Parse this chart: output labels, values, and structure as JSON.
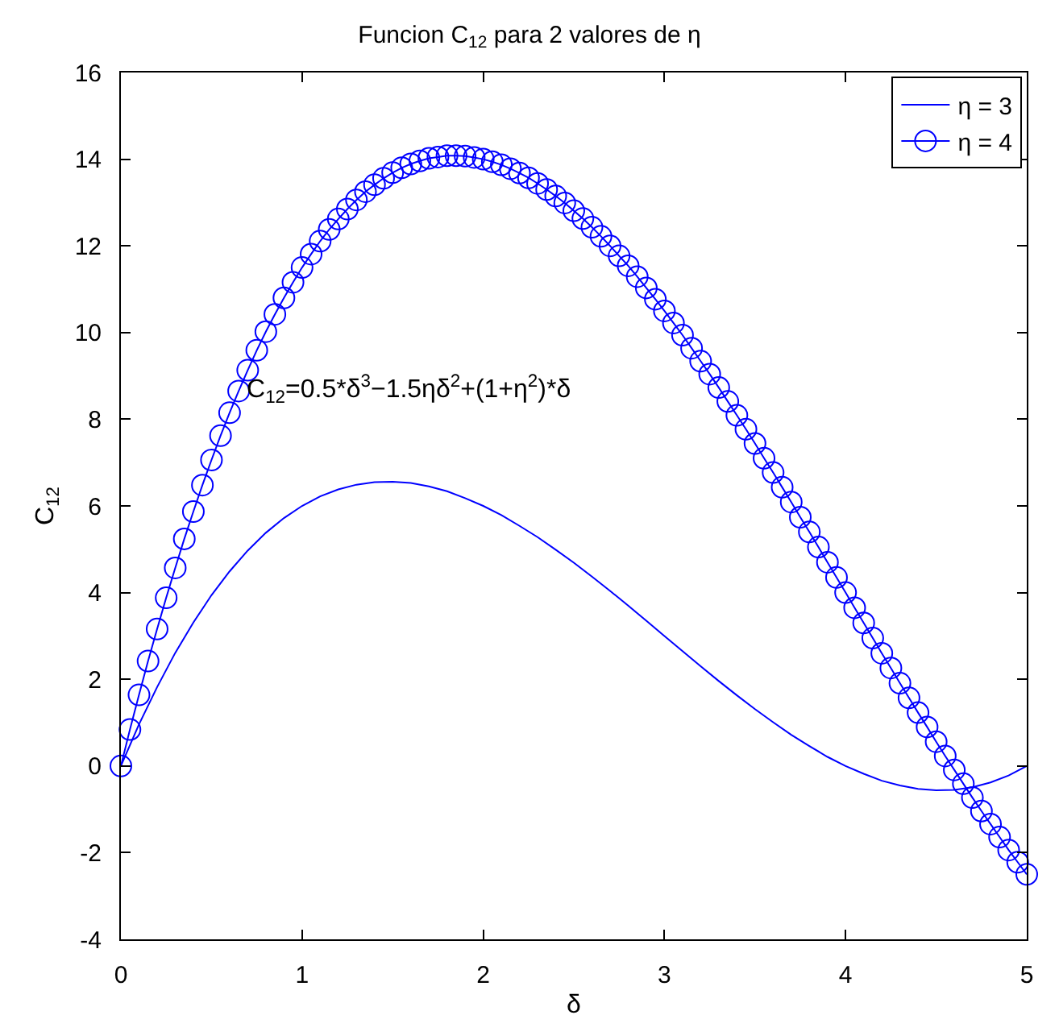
{
  "chart_data": {
    "type": "line",
    "title": "Funcion C$_{12}$ para 2 valores de η",
    "xlabel": "δ",
    "ylabel": "C$_{12}$",
    "annotations": [
      "C$_{12}$=0.5*δ$^{3}$−1.5ηδ$^{2}$+(1+η$^{2}$)*δ"
    ],
    "xlim": [
      0,
      5
    ],
    "xticks": [
      0,
      1,
      2,
      3,
      4,
      5
    ],
    "ylim": [
      -4,
      16
    ],
    "yticks": [
      -4,
      -2,
      0,
      2,
      4,
      6,
      8,
      10,
      12,
      14,
      16
    ],
    "legend": "top right",
    "line_style": "solid",
    "series": [
      {
        "name": "η = 3",
        "color": "#0000ff",
        "marker": "none",
        "x": [
          0,
          0.1,
          0.2,
          0.3,
          0.4,
          0.5,
          0.6,
          0.7,
          0.8,
          0.9,
          1.0,
          1.1,
          1.2,
          1.3,
          1.4,
          1.5,
          1.6,
          1.7,
          1.8,
          1.9,
          2.0,
          2.1,
          2.2,
          2.3,
          2.4,
          2.5,
          2.6,
          2.7,
          2.8,
          2.9,
          3.0,
          3.1,
          3.2,
          3.3,
          3.4,
          3.5,
          3.6,
          3.7,
          3.8,
          3.9,
          4.0,
          4.1,
          4.2,
          4.3,
          4.4,
          4.5,
          4.6,
          4.7,
          4.8,
          4.9,
          5.0
        ],
        "values": [
          0,
          0.96,
          1.82,
          2.61,
          3.31,
          3.94,
          4.49,
          4.97,
          5.38,
          5.72,
          6,
          6.22,
          6.38,
          6.49,
          6.55,
          6.56,
          6.53,
          6.45,
          6.34,
          6.18,
          6,
          5.79,
          5.54,
          5.28,
          4.99,
          4.69,
          4.37,
          4.04,
          3.7,
          3.35,
          3,
          2.65,
          2.3,
          1.96,
          1.63,
          1.31,
          1.01,
          0.72,
          0.46,
          0.21,
          0,
          -0.18,
          -0.34,
          -0.45,
          -0.53,
          -0.56,
          -0.55,
          -0.49,
          -0.38,
          -0.22,
          0
        ]
      },
      {
        "name": "η = 4",
        "color": "#0000ff",
        "marker": "circle",
        "x": [
          0,
          0.05,
          0.1,
          0.15,
          0.2,
          0.25,
          0.3,
          0.35,
          0.4,
          0.45,
          0.5,
          0.55,
          0.6,
          0.65,
          0.7,
          0.75,
          0.8,
          0.85,
          0.9,
          0.95,
          1.0,
          1.05,
          1.1,
          1.15,
          1.2,
          1.25,
          1.3,
          1.35,
          1.4,
          1.45,
          1.5,
          1.55,
          1.6,
          1.65,
          1.7,
          1.75,
          1.8,
          1.85,
          1.9,
          1.95,
          2.0,
          2.05,
          2.1,
          2.15,
          2.2,
          2.25,
          2.3,
          2.35,
          2.4,
          2.45,
          2.5,
          2.55,
          2.6,
          2.65,
          2.7,
          2.75,
          2.8,
          2.85,
          2.9,
          2.95,
          3.0,
          3.05,
          3.1,
          3.15,
          3.2,
          3.25,
          3.3,
          3.35,
          3.4,
          3.45,
          3.5,
          3.55,
          3.6,
          3.65,
          3.7,
          3.75,
          3.8,
          3.85,
          3.9,
          3.95,
          4.0,
          4.05,
          4.1,
          4.15,
          4.2,
          4.25,
          4.3,
          4.35,
          4.4,
          4.45,
          4.5,
          4.55,
          4.6,
          4.65,
          4.7,
          4.75,
          4.8,
          4.85,
          4.9,
          4.95,
          5.0
        ],
        "values": [
          0,
          0.84,
          1.64,
          2.42,
          3.16,
          3.88,
          4.57,
          5.24,
          5.87,
          6.48,
          7.06,
          7.62,
          8.15,
          8.65,
          9.13,
          9.59,
          10.02,
          10.42,
          10.8,
          11.16,
          11.5,
          11.81,
          12.11,
          12.38,
          12.62,
          12.85,
          13.06,
          13.25,
          13.41,
          13.56,
          13.69,
          13.8,
          13.89,
          13.96,
          14.02,
          14.05,
          14.08,
          14.08,
          14.07,
          14.04,
          14,
          13.94,
          13.87,
          13.78,
          13.68,
          13.57,
          13.44,
          13.3,
          13.15,
          12.99,
          12.81,
          12.63,
          12.43,
          12.22,
          12.0,
          11.77,
          11.54,
          11.29,
          11.03,
          10.77,
          10.5,
          10.22,
          9.94,
          9.64,
          9.34,
          9.04,
          8.73,
          8.41,
          8.09,
          7.77,
          7.44,
          7.1,
          6.77,
          6.43,
          6.09,
          5.74,
          5.4,
          5.05,
          4.7,
          4.35,
          4,
          3.65,
          3.3,
          2.95,
          2.6,
          2.26,
          1.91,
          1.57,
          1.23,
          0.9,
          0.56,
          0.23,
          -0.09,
          -0.41,
          -0.73,
          -1.04,
          -1.34,
          -1.64,
          -1.94,
          -2.22,
          -2.5
        ]
      }
    ]
  }
}
